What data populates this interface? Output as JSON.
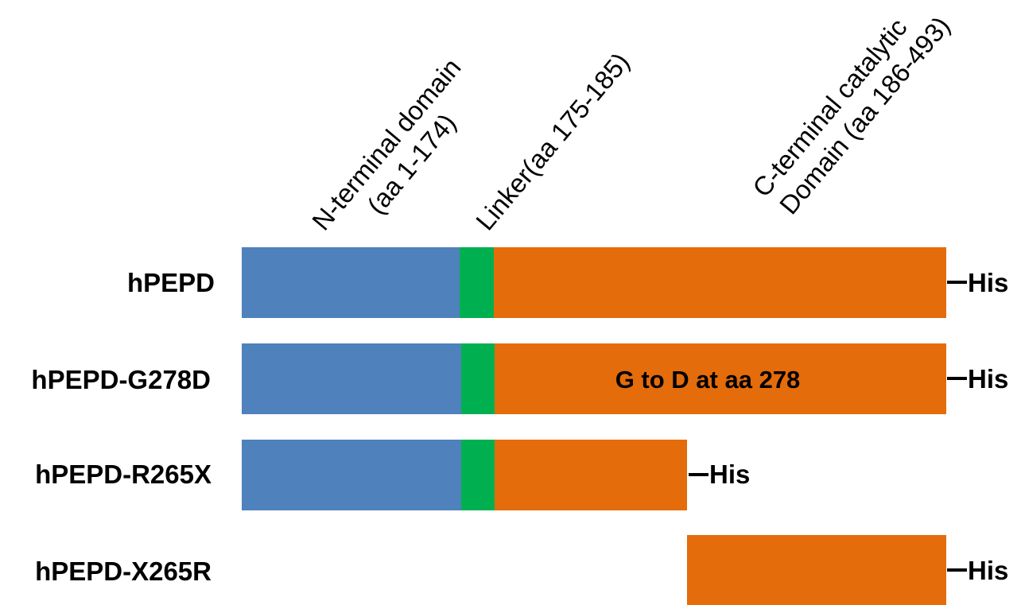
{
  "colors": {
    "n_terminal": "#4F81BD",
    "linker": "#00B050",
    "c_terminal": "#E46C0A",
    "text": "#000000"
  },
  "domain_headers": {
    "n_terminal": [
      "N-terminal domain",
      "(aa 1-174)"
    ],
    "linker": [
      "Linker(aa 175-185)"
    ],
    "c_terminal": [
      "C-terminal catalytic",
      "Domain (aa 186-493)"
    ]
  },
  "constructs": [
    {
      "label": "hPEPD",
      "tag": "His",
      "segments": [
        "n_terminal",
        "linker",
        "c_terminal"
      ],
      "start_aa": 1,
      "end_aa": 493
    },
    {
      "label": "hPEPD-G278D",
      "tag": "His",
      "segments": [
        "n_terminal",
        "linker",
        "c_terminal"
      ],
      "start_aa": 1,
      "end_aa": 493,
      "annotation": "G to D at aa 278"
    },
    {
      "label": "hPEPD-R265X",
      "tag": "His",
      "segments": [
        "n_terminal",
        "linker",
        "c_terminal"
      ],
      "start_aa": 1,
      "end_aa": 264
    },
    {
      "label": "hPEPD-X265R",
      "tag": "His",
      "segments": [
        "c_terminal"
      ],
      "start_aa": 265,
      "end_aa": 493
    }
  ]
}
